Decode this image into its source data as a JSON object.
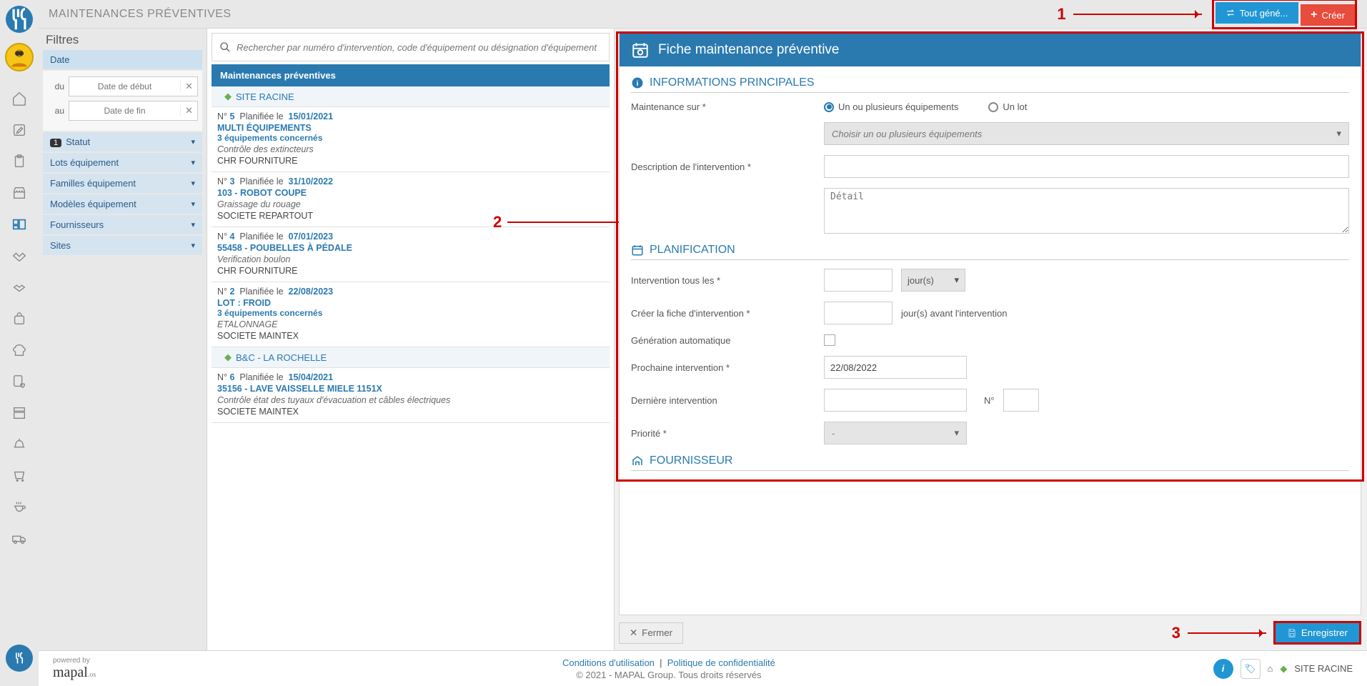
{
  "colors": {
    "brand": "#2a7ab0",
    "accent": "#2196d4",
    "danger": "#e74c3c",
    "annot": "#c00000"
  },
  "header": {
    "title": "MAINTENANCES PRÉVENTIVES",
    "btn_generate": "Tout géné...",
    "btn_create": "Créer"
  },
  "filters": {
    "title": "Filtres",
    "sections": {
      "date": {
        "label": "Date",
        "from_lbl": "du",
        "to_lbl": "au",
        "from_ph": "Date de début",
        "to_ph": "Date de fin"
      },
      "status": {
        "label": "Statut",
        "badge": "1"
      },
      "lots": {
        "label": "Lots équipement"
      },
      "families": {
        "label": "Familles équipement"
      },
      "models": {
        "label": "Modèles équipement"
      },
      "suppliers": {
        "label": "Fournisseurs"
      },
      "sites": {
        "label": "Sites"
      }
    }
  },
  "search": {
    "placeholder": "Rechercher par numéro d'intervention, code d'équipement ou désignation d'équipement"
  },
  "list": {
    "header": "Maintenances préventives",
    "site_root": "SITE RACINE",
    "site_bc": "B&C - LA ROCHELLE",
    "items": [
      {
        "num": "5",
        "plan_lbl": "Planifiée le",
        "date": "15/01/2021",
        "equip": "MULTI ÉQUIPEMENTS",
        "sub": "3 équipements concernés",
        "desc": "Contrôle des extincteurs",
        "supplier": "CHR FOURNITURE"
      },
      {
        "num": "3",
        "plan_lbl": "Planifiée le",
        "date": "31/10/2022",
        "equip": "103 - ROBOT COUPE",
        "sub": "",
        "desc": "Graissage du rouage",
        "supplier": "SOCIETE REPARTOUT"
      },
      {
        "num": "4",
        "plan_lbl": "Planifiée le",
        "date": "07/01/2023",
        "equip": "55458 - POUBELLES À PÉDALE",
        "sub": "",
        "desc": "Verification boulon",
        "supplier": "CHR FOURNITURE"
      },
      {
        "num": "2",
        "plan_lbl": "Planifiée le",
        "date": "22/08/2023",
        "equip": "LOT : FROID",
        "sub": "3 équipements concernés",
        "desc": "ETALONNAGE",
        "supplier": "SOCIETE MAINTEX"
      },
      {
        "num": "6",
        "plan_lbl": "Planifiée le",
        "date": "15/04/2021",
        "equip": "35156 - LAVE VAISSELLE MIELE 1151X",
        "sub": "",
        "desc": "Contrôle état des tuyaux d'évacuation et câbles électriques",
        "supplier": "SOCIETE MAINTEX"
      }
    ],
    "num_prefix": "N°"
  },
  "form": {
    "title": "Fiche maintenance préventive",
    "sec_info": "INFORMATIONS PRINCIPALES",
    "sec_plan": "PLANIFICATION",
    "sec_supplier": "FOURNISSEUR",
    "lbl_maint_on": "Maintenance sur *",
    "radio_equip": "Un ou plusieurs équipements",
    "radio_lot": "Un lot",
    "select_equip_ph": "Choisir un ou plusieurs équipements",
    "lbl_desc": "Description de l'intervention *",
    "detail_ph": "Détail",
    "lbl_interval": "Intervention tous les *",
    "unit_days": "jour(s)",
    "lbl_create_before": "Créer la fiche d'intervention *",
    "txt_days_before": "jour(s) avant l'intervention",
    "lbl_autogen": "Génération automatique",
    "lbl_next": "Prochaine intervention *",
    "val_next": "22/08/2022",
    "lbl_last": "Dernière intervention",
    "lbl_last_num": "N°",
    "lbl_priority": "Priorité *",
    "priority_val": "-",
    "btn_close": "Fermer",
    "btn_save": "Enregistrer"
  },
  "footer": {
    "powered": "powered by",
    "brand": "mapal",
    "brand_suffix": ".os",
    "terms": "Conditions d'utilisation",
    "sep": "|",
    "privacy": "Politique de confidentialité",
    "copyright": "© 2021 - MAPAL Group. Tous droits réservés",
    "site": "SITE RACINE"
  },
  "annotations": {
    "n1": "1",
    "n2": "2",
    "n3": "3"
  }
}
